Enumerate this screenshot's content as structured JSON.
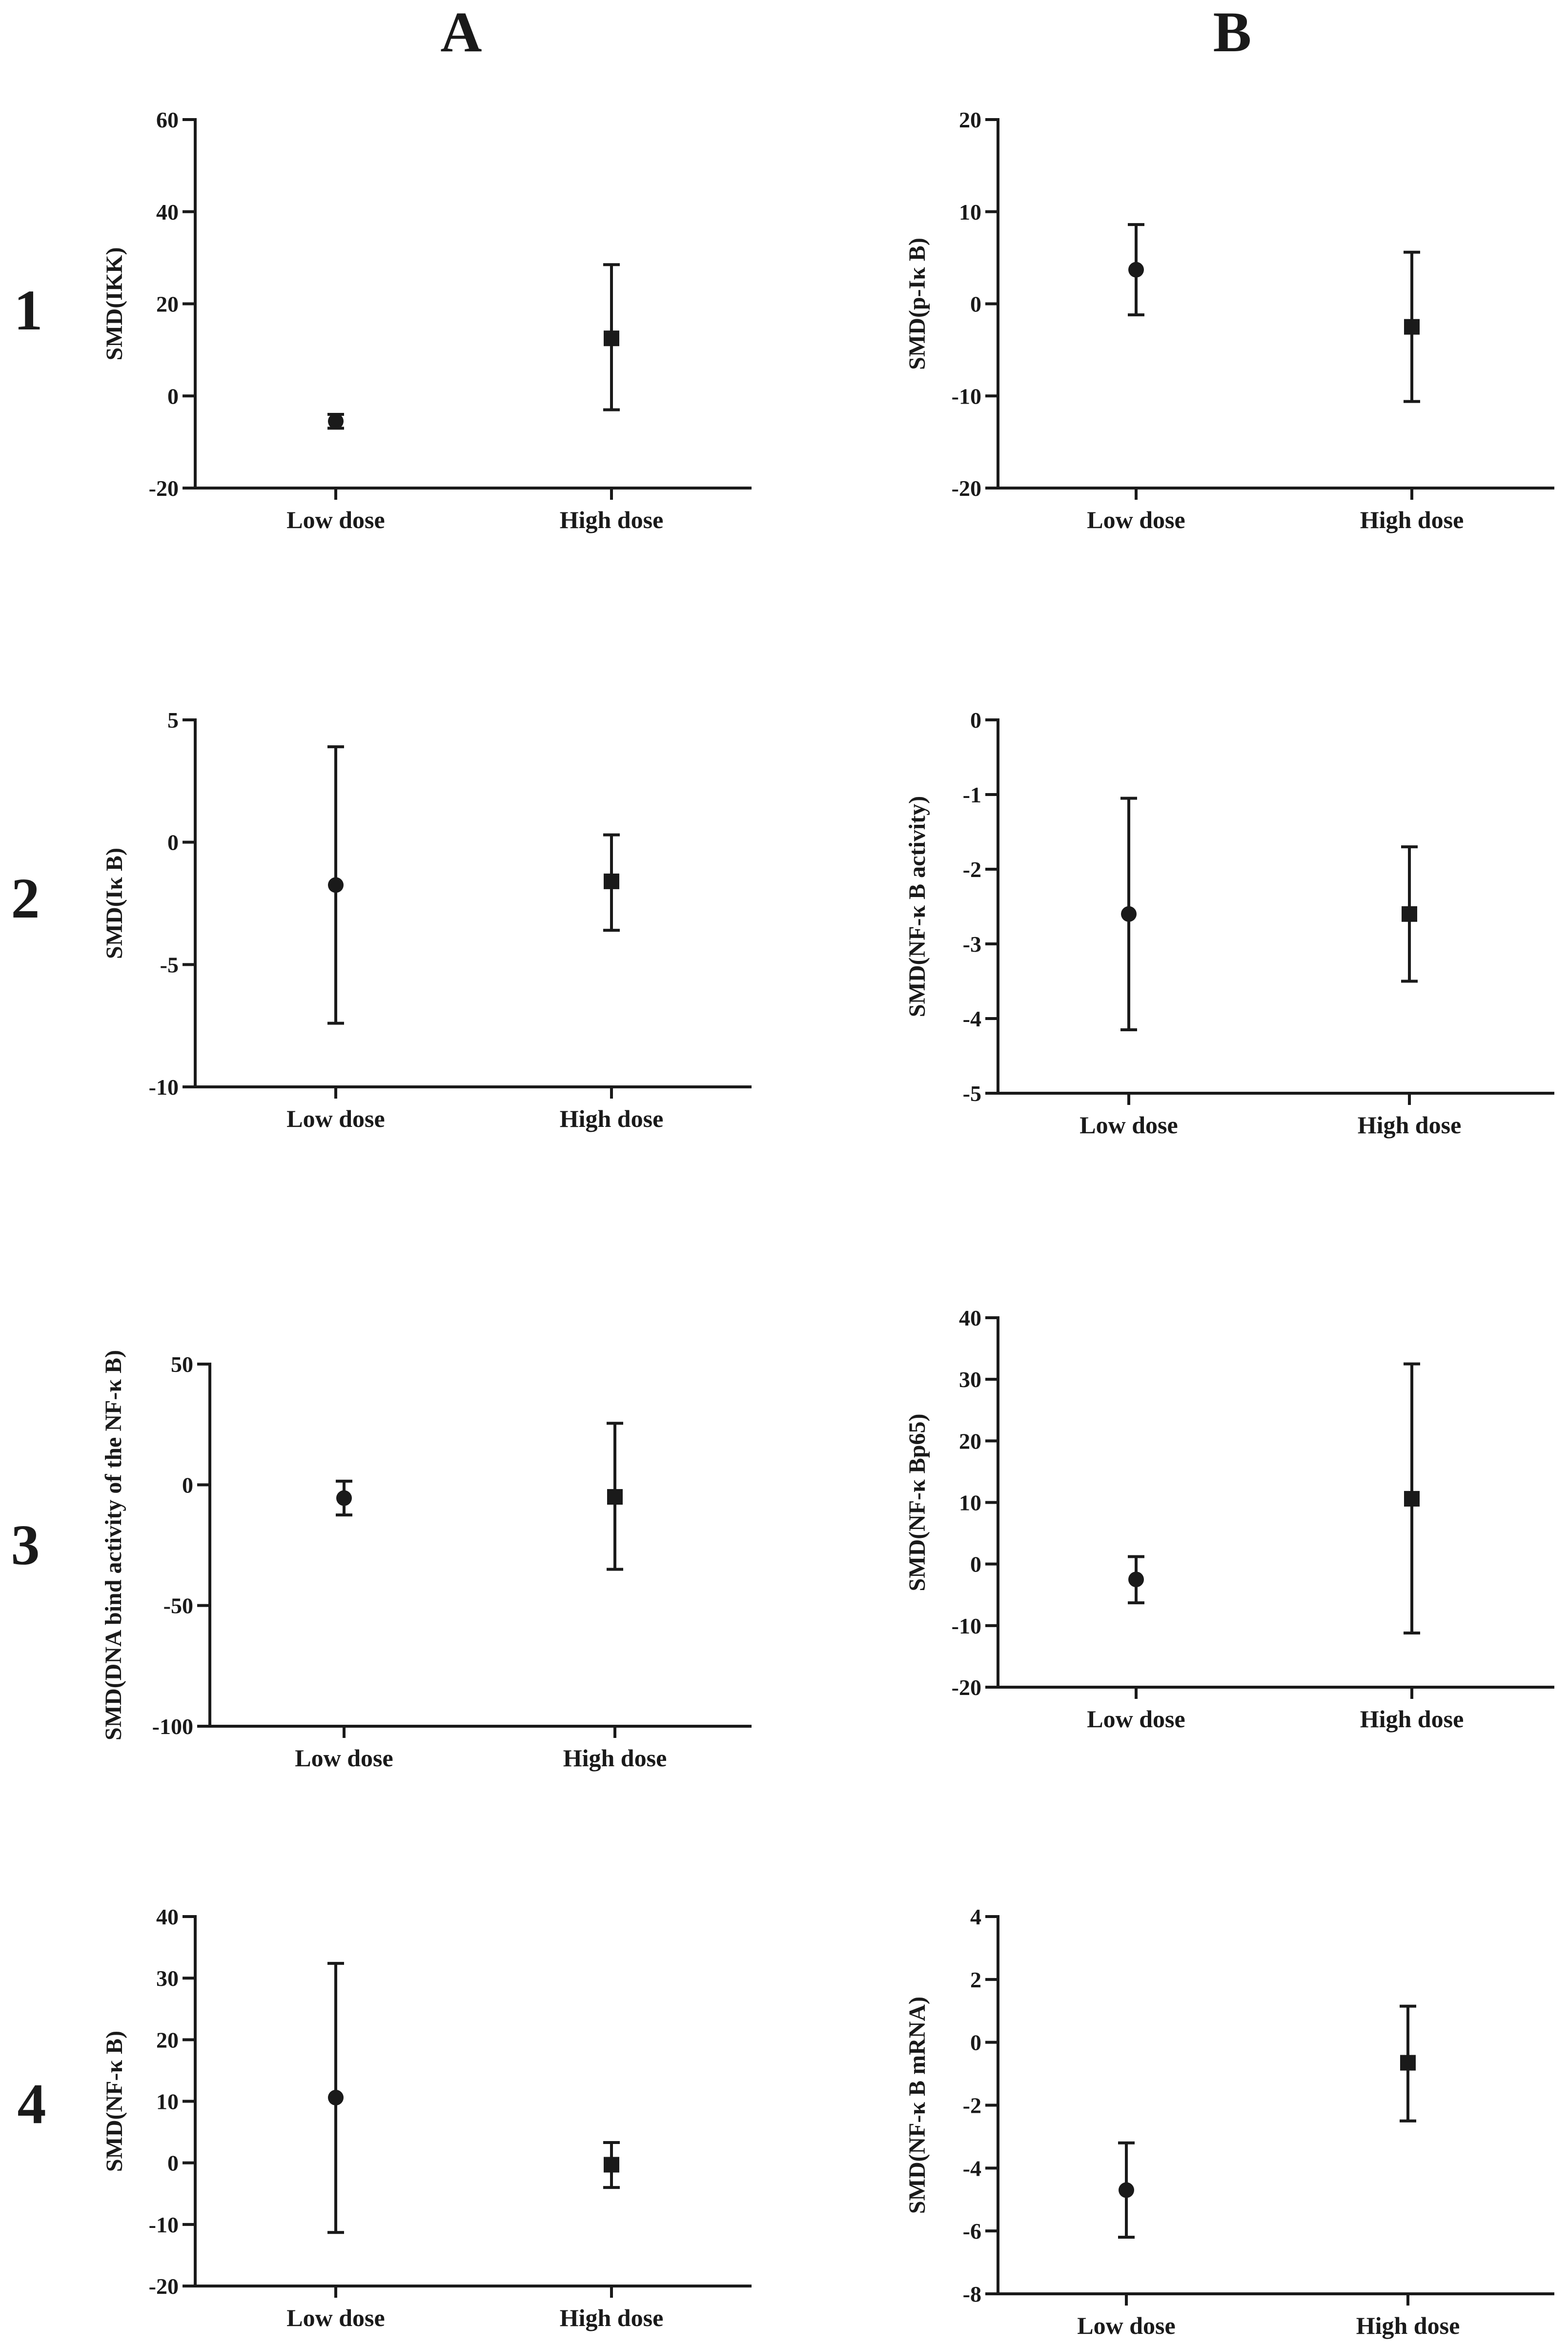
{
  "column_labels": [
    "A",
    "B"
  ],
  "row_labels": [
    "1",
    "2",
    "3",
    "4"
  ],
  "chart_data": [
    {
      "id": "A1",
      "type": "errorbar",
      "ylabel": "SMD(IKK)",
      "ylim": [
        -20,
        60
      ],
      "yticks": [
        "-20",
        "0",
        "20",
        "40",
        "60"
      ],
      "yticks_values": [
        -20,
        0,
        20,
        40,
        60
      ],
      "categories": [
        "Low dose",
        "High dose"
      ],
      "markers": [
        "circle",
        "square"
      ],
      "points": [
        {
          "category": "Low dose",
          "value": -5.5,
          "lower": -7,
          "upper": -4
        },
        {
          "category": "High dose",
          "value": 12.5,
          "lower": -3,
          "upper": 28.5
        }
      ]
    },
    {
      "id": "B1",
      "type": "errorbar",
      "ylabel": "SMD(p-Iκ B)",
      "ylim": [
        -20,
        20
      ],
      "yticks": [
        "-20",
        "-10",
        "0",
        "10",
        "20"
      ],
      "yticks_values": [
        -20,
        -10,
        0,
        10,
        20
      ],
      "categories": [
        "Low dose",
        "High dose"
      ],
      "markers": [
        "circle",
        "square"
      ],
      "points": [
        {
          "category": "Low dose",
          "value": 3.7,
          "lower": -1.2,
          "upper": 8.6
        },
        {
          "category": "High dose",
          "value": -2.5,
          "lower": -10.6,
          "upper": 5.6
        }
      ]
    },
    {
      "id": "A2",
      "type": "errorbar",
      "ylabel": "SMD(Iκ B)",
      "ylim": [
        -10,
        5
      ],
      "yticks": [
        "-10",
        "-5",
        "0",
        "5"
      ],
      "yticks_values": [
        -10,
        -5,
        0,
        5
      ],
      "categories": [
        "Low dose",
        "High dose"
      ],
      "markers": [
        "circle",
        "square"
      ],
      "points": [
        {
          "category": "Low dose",
          "value": -1.75,
          "lower": -7.4,
          "upper": 3.9
        },
        {
          "category": "High dose",
          "value": -1.6,
          "lower": -3.6,
          "upper": 0.3
        }
      ]
    },
    {
      "id": "B2",
      "type": "errorbar",
      "ylabel": "SMD(NF-κ B activity)",
      "ylim": [
        -5,
        0
      ],
      "yticks": [
        "-5",
        "-4",
        "-3",
        "-2",
        "-1",
        "0"
      ],
      "yticks_values": [
        -5,
        -4,
        -3,
        -2,
        -1,
        0
      ],
      "categories": [
        "Low dose",
        "High dose"
      ],
      "markers": [
        "circle",
        "square"
      ],
      "points": [
        {
          "category": "Low dose",
          "value": -2.6,
          "lower": -4.15,
          "upper": -1.05
        },
        {
          "category": "High dose",
          "value": -2.6,
          "lower": -3.5,
          "upper": -1.7
        }
      ]
    },
    {
      "id": "A3",
      "type": "errorbar",
      "ylabel": "SMD(DNA bind activity of the NF-κ B)",
      "ylim": [
        -100,
        50
      ],
      "yticks": [
        "-100",
        "-50",
        "0",
        "50"
      ],
      "yticks_values": [
        -100,
        -50,
        0,
        50
      ],
      "categories": [
        "Low dose",
        "High dose"
      ],
      "markers": [
        "circle",
        "square"
      ],
      "points": [
        {
          "category": "Low dose",
          "value": -5.5,
          "lower": -12.5,
          "upper": 1.5
        },
        {
          "category": "High dose",
          "value": -5,
          "lower": -35,
          "upper": 25.5
        }
      ]
    },
    {
      "id": "B3",
      "type": "errorbar",
      "ylabel": "SMD(NF-κ Bp65)",
      "ylim": [
        -20,
        40
      ],
      "yticks": [
        "-20",
        "-10",
        "0",
        "10",
        "20",
        "30",
        "40"
      ],
      "yticks_values": [
        -20,
        -10,
        0,
        10,
        20,
        30,
        40
      ],
      "categories": [
        "Low dose",
        "High dose"
      ],
      "markers": [
        "circle",
        "square"
      ],
      "points": [
        {
          "category": "Low dose",
          "value": -2.5,
          "lower": -6.3,
          "upper": 1.2
        },
        {
          "category": "High dose",
          "value": 10.6,
          "lower": -11.2,
          "upper": 32.5
        }
      ]
    },
    {
      "id": "A4",
      "type": "errorbar",
      "ylabel": "SMD(NF-κ B)",
      "ylim": [
        -20,
        40
      ],
      "yticks": [
        "-20",
        "-10",
        "0",
        "10",
        "20",
        "30",
        "40"
      ],
      "yticks_values": [
        -20,
        -10,
        0,
        10,
        20,
        30,
        40
      ],
      "categories": [
        "Low dose",
        "High dose"
      ],
      "markers": [
        "circle",
        "square"
      ],
      "points": [
        {
          "category": "Low dose",
          "value": 10.6,
          "lower": -11.3,
          "upper": 32.4
        },
        {
          "category": "High dose",
          "value": -0.3,
          "lower": -4,
          "upper": 3.3
        }
      ]
    },
    {
      "id": "B4",
      "type": "errorbar",
      "ylabel": "SMD(NF-κ B mRNA)",
      "ylim": [
        -8,
        4
      ],
      "yticks": [
        "-8",
        "-6",
        "-4",
        "-2",
        "0",
        "2",
        "4"
      ],
      "yticks_values": [
        -8,
        -6,
        -4,
        -2,
        0,
        2,
        4
      ],
      "categories": [
        "Low dose",
        "High dose"
      ],
      "markers": [
        "circle",
        "square"
      ],
      "points": [
        {
          "category": "Low dose",
          "value": -4.7,
          "lower": -6.2,
          "upper": -3.2
        },
        {
          "category": "High dose",
          "value": -0.65,
          "lower": -2.5,
          "upper": 1.15
        }
      ]
    }
  ]
}
